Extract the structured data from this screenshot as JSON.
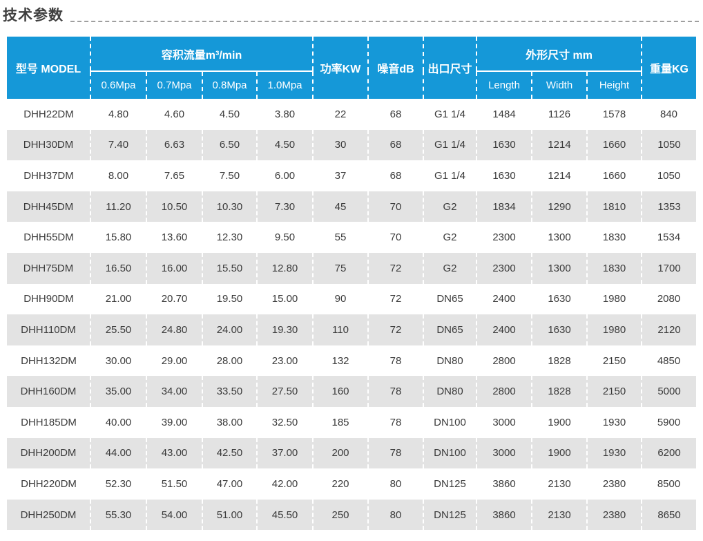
{
  "page": {
    "title": "技术参数"
  },
  "colors": {
    "header_bg": "#1598d8",
    "row_alt_bg": "#e3e3e3",
    "header_text": "#ffffff",
    "body_text": "#3a3a3a",
    "dotted_rule": "#9f9f9f"
  },
  "table": {
    "header": {
      "model": "型号 MODEL",
      "flow_group": "容积流量m³/min",
      "flow_cols": [
        "0.6Mpa",
        "0.7Mpa",
        "0.8Mpa",
        "1.0Mpa"
      ],
      "power": "功率KW",
      "noise": "噪音dB",
      "outlet": "出口尺寸",
      "dims_group": "外形尺寸 mm",
      "dims_cols": [
        "Length",
        "Width",
        "Height"
      ],
      "weight": "重量KG"
    },
    "rows": [
      [
        "DHH22DM",
        "4.80",
        "4.60",
        "4.50",
        "3.80",
        "22",
        "68",
        "G1 1/4",
        "1484",
        "1126",
        "1578",
        "840"
      ],
      [
        "DHH30DM",
        "7.40",
        "6.63",
        "6.50",
        "4.50",
        "30",
        "68",
        "G1 1/4",
        "1630",
        "1214",
        "1660",
        "1050"
      ],
      [
        "DHH37DM",
        "8.00",
        "7.65",
        "7.50",
        "6.00",
        "37",
        "68",
        "G1 1/4",
        "1630",
        "1214",
        "1660",
        "1050"
      ],
      [
        "DHH45DM",
        "11.20",
        "10.50",
        "10.30",
        "7.30",
        "45",
        "70",
        "G2",
        "1834",
        "1290",
        "1810",
        "1353"
      ],
      [
        "DHH55DM",
        "15.80",
        "13.60",
        "12.30",
        "9.50",
        "55",
        "70",
        "G2",
        "2300",
        "1300",
        "1830",
        "1534"
      ],
      [
        "DHH75DM",
        "16.50",
        "16.00",
        "15.50",
        "12.80",
        "75",
        "72",
        "G2",
        "2300",
        "1300",
        "1830",
        "1700"
      ],
      [
        "DHH90DM",
        "21.00",
        "20.70",
        "19.50",
        "15.00",
        "90",
        "72",
        "DN65",
        "2400",
        "1630",
        "1980",
        "2080"
      ],
      [
        "DHH110DM",
        "25.50",
        "24.80",
        "24.00",
        "19.30",
        "110",
        "72",
        "DN65",
        "2400",
        "1630",
        "1980",
        "2120"
      ],
      [
        "DHH132DM",
        "30.00",
        "29.00",
        "28.00",
        "23.00",
        "132",
        "78",
        "DN80",
        "2800",
        "1828",
        "2150",
        "4850"
      ],
      [
        "DHH160DM",
        "35.00",
        "34.00",
        "33.50",
        "27.50",
        "160",
        "78",
        "DN80",
        "2800",
        "1828",
        "2150",
        "5000"
      ],
      [
        "DHH185DM",
        "40.00",
        "39.00",
        "38.00",
        "32.50",
        "185",
        "78",
        "DN100",
        "3000",
        "1900",
        "1930",
        "5900"
      ],
      [
        "DHH200DM",
        "44.00",
        "43.00",
        "42.50",
        "37.00",
        "200",
        "78",
        "DN100",
        "3000",
        "1900",
        "1930",
        "6200"
      ],
      [
        "DHH220DM",
        "52.30",
        "51.50",
        "47.00",
        "42.00",
        "220",
        "80",
        "DN125",
        "3860",
        "2130",
        "2380",
        "8500"
      ],
      [
        "DHH250DM",
        "55.30",
        "54.00",
        "51.00",
        "45.50",
        "250",
        "80",
        "DN125",
        "3860",
        "2130",
        "2380",
        "8650"
      ]
    ]
  }
}
